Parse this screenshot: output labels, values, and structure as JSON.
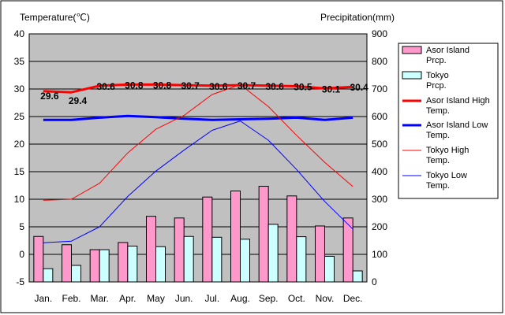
{
  "chart_data": {
    "type": "bar",
    "title_left": "Temperature(℃)",
    "title_right": "Precipitation(mm)",
    "categories": [
      "Jan.",
      "Feb.",
      "Mar.",
      "Apr.",
      "May",
      "Jun.",
      "Jul.",
      "Aug.",
      "Sep.",
      "Oct.",
      "Nov.",
      "Dec."
    ],
    "y_left": {
      "min": -5,
      "max": 40,
      "ticks": [
        "-5",
        "0",
        "5",
        "10",
        "15",
        "20",
        "25",
        "30",
        "35",
        "40"
      ]
    },
    "y_right": {
      "min": 0,
      "max": 900,
      "ticks": [
        "0",
        "100",
        "200",
        "300",
        "400",
        "500",
        "600",
        "700",
        "800",
        "900"
      ]
    },
    "bar_series": [
      {
        "name": "Asor Island Prcp.",
        "color": "#ff99cc",
        "values": [
          165,
          135,
          117,
          143,
          238,
          232,
          308,
          330,
          347,
          312,
          203,
          232
        ]
      },
      {
        "name": "Tokyo Prcp.",
        "color": "#ccffff",
        "values": [
          48,
          60,
          117,
          130,
          128,
          165,
          162,
          155,
          209,
          164,
          93,
          40
        ]
      }
    ],
    "line_series": [
      {
        "name": "Asor Island High Temp.",
        "color": "#ff0000",
        "width": 3,
        "values": [
          29.6,
          29.4,
          30.6,
          30.8,
          30.8,
          30.7,
          30.6,
          30.7,
          30.6,
          30.5,
          30.1,
          30.4
        ]
      },
      {
        "name": "Asor Island Low Temp.",
        "color": "#0000ff",
        "width": 3,
        "values": [
          24.4,
          24.4,
          24.8,
          25.1,
          24.9,
          24.6,
          24.4,
          24.5,
          24.6,
          24.8,
          24.4,
          24.8
        ]
      },
      {
        "name": "Tokyo High Temp.",
        "color": "#ff0000",
        "width": 1,
        "values": [
          9.8,
          10.0,
          12.9,
          18.4,
          22.7,
          25.2,
          29.0,
          30.8,
          26.8,
          21.6,
          16.7,
          12.3
        ]
      },
      {
        "name": "Tokyo Low Temp.",
        "color": "#0000ff",
        "width": 1,
        "values": [
          2.1,
          2.4,
          5.0,
          10.5,
          15.1,
          18.9,
          22.5,
          24.2,
          20.7,
          15.4,
          9.6,
          4.6
        ]
      }
    ],
    "data_labels": [
      "29.6",
      "29.4",
      "30.6",
      "30.8",
      "30.8",
      "30.7",
      "30.6",
      "30.7",
      "30.6",
      "30.5",
      "30.1",
      "30.4"
    ],
    "legend": [
      "Asor Island Prcp.",
      "Tokyo Prcp.",
      "Asor Island High Temp.",
      "Asor Island Low Temp.",
      "Tokyo High Temp.",
      "Tokyo Low Temp."
    ],
    "legend_position": "right",
    "grid": true
  }
}
